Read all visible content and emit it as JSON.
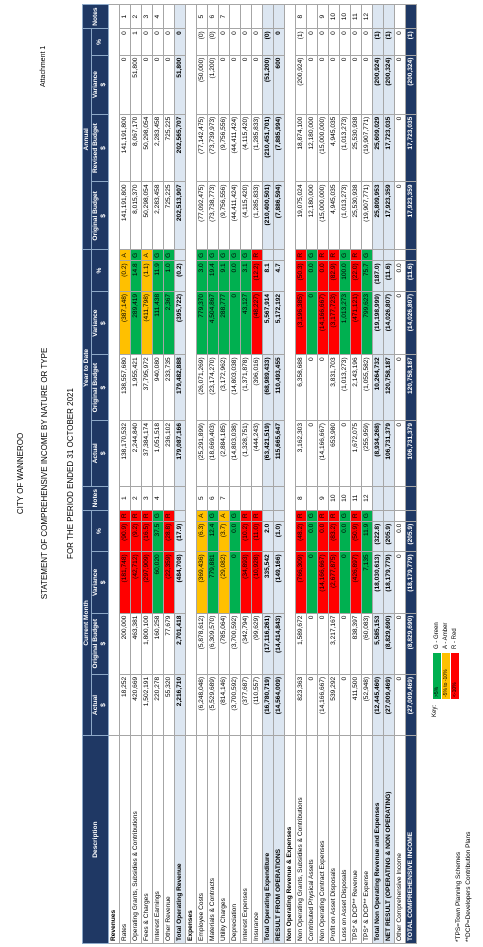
{
  "header": {
    "city": "CITY OF WANNEROO",
    "title": "STATEMENT OF COMPREHENSIVE INCOME BY NATURE OR TYPE",
    "period": "FOR THE PERIOD ENDED 31 OCTOBER 2021",
    "attachment": "Attachment 1"
  },
  "table": {
    "description": "Description",
    "notes": "Notes",
    "unit": "$",
    "groups": [
      {
        "title": "Current Month",
        "columns": [
          "Actual",
          "Original Budget",
          "Variance",
          "%"
        ]
      },
      {
        "title": "Year to Date",
        "columns": [
          "Actual",
          "Original Budget",
          "Variance",
          "%"
        ]
      },
      {
        "title": "Annual",
        "columns": [
          "Original Budget",
          "Revised Budget",
          "Variance",
          "%"
        ]
      }
    ],
    "rows": [
      [
        "Revenues"
      ],
      [
        "Rates",
        "18,252",
        "200,000",
        "(181,748)",
        "(90.9)",
        "R",
        "1",
        "138,170,532",
        "138,557,680",
        "(387,148)",
        "(0.2)",
        "A",
        "141,191,800",
        "141,191,800",
        "0",
        "0",
        "1"
      ],
      [
        "Operating Grants, Subsidies & Contributions",
        "420,669",
        "463,381",
        "(42,712)",
        "(9.2)",
        "R",
        "2",
        "2,244,840",
        "1,955,421",
        "289,419",
        "14.8",
        "G",
        "8,015,370",
        "8,067,170",
        "51,800",
        "1",
        "2"
      ],
      [
        "Fees & Charges",
        "1,502,191",
        "1,800,100",
        "(297,909)",
        "(16.5)",
        "R",
        "3",
        "37,384,174",
        "37,795,972",
        "(411,798)",
        "(1.1)",
        "A",
        "50,298,054",
        "50,298,054",
        "0",
        "0",
        "3"
      ],
      [
        "Interest Earnings",
        "220,278",
        "160,258",
        "60,020",
        "37.5",
        "G",
        "4",
        "1,051,518",
        "940,080",
        "111,438",
        "11.9",
        "G",
        "2,283,458",
        "2,283,458",
        "0",
        "0",
        "4"
      ],
      [
        "Other Revenue",
        "55,320",
        "77,679",
        "(22,359)",
        "(28.8)",
        "R",
        null,
        "236,102",
        "233,735",
        "2,367",
        "1.0",
        "G",
        "725,225",
        "725,225",
        "0",
        "0",
        null
      ],
      [
        "Total Operating Revenue",
        "2,216,710",
        "2,701,418",
        "(484,708)",
        "(17.9)",
        null,
        null,
        "179,087,166",
        "179,482,888",
        "(395,722)",
        "(0.2)",
        null,
        "202,513,907",
        "202,565,707",
        "51,800",
        "0",
        null
      ],
      [
        "Expenses"
      ],
      [
        "Employee Costs",
        "(6,248,048)",
        "(5,878,612)",
        "(369,436)",
        "(6.3)",
        "A",
        "5",
        "(25,291,899)",
        "(26,071,269)",
        "779,370",
        "3.0",
        "G",
        "(77,092,475)",
        "(77,142,475)",
        "(50,000)",
        "(0)",
        "5"
      ],
      [
        "Materials & Contracts",
        "(5,529,689)",
        "(6,309,570)",
        "779,881",
        "12.4",
        "G",
        "6",
        "(18,669,403)",
        "(23,174,270)",
        "4,504,867",
        "19.4",
        "G",
        "(73,738,773)",
        "(73,739,973)",
        "(1,200)",
        "(0)",
        "6"
      ],
      [
        "Utility Charges",
        "(814,146)",
        "(785,064)",
        "(29,082)",
        "(3.7)",
        "A",
        "7",
        "(2,884,185)",
        "(3,172,962)",
        "288,777",
        "9.1",
        "G",
        "(9,756,556)",
        "(9,756,556)",
        "0",
        "0",
        "7"
      ],
      [
        "Depreciation",
        "(3,700,592)",
        "(3,700,592)",
        "0",
        "0.0",
        "G",
        null,
        "(14,803,038)",
        "(14,803,038)",
        "0",
        "0.0",
        "G",
        "(44,411,424)",
        "(44,411,424)",
        "0",
        "0",
        null
      ],
      [
        "Interest Expenses",
        "(377,687)",
        "(342,794)",
        "(34,893)",
        "(10.2)",
        "R",
        null,
        "(1,328,751)",
        "(1,371,878)",
        "43,127",
        "3.1",
        "G",
        "(4,115,420)",
        "(4,115,420)",
        "0",
        "0",
        null
      ],
      [
        "Insurance",
        "(110,557)",
        "(99,629)",
        "(10,928)",
        "(11.0)",
        "R",
        null,
        "(444,243)",
        "(396,016)",
        "(48,227)",
        "(12.2)",
        "R",
        "(1,285,833)",
        "(1,285,833)",
        "0",
        "0",
        null
      ],
      [
        "Total Operating Expenditure",
        "(16,780,719)",
        "(17,116,261)",
        "335,542",
        "2.0",
        null,
        null,
        "(63,421,519)",
        "(68,989,433)",
        "5,567,914",
        "8.1",
        null,
        "(210,400,501)",
        "(210,451,701)",
        "(51,200)",
        "(0)",
        null
      ],
      [
        "RESULT FROM OPERATIONS",
        "(14,564,009)",
        "(14,414,843)",
        "(149,166)",
        "(1.0)",
        null,
        null,
        "115,665,647",
        "110,493,455",
        "5,172,192",
        "4.7",
        null,
        "(7,886,594)",
        "(7,885,994)",
        "600",
        "0",
        null
      ],
      [
        "Non Operating Revenue & Expenses"
      ],
      [
        "Non Operating Grants, Subsidies & Contributions",
        "823,363",
        "1,589,672",
        "(766,309)",
        "(48.2)",
        "R",
        "8",
        "3,162,303",
        "6,358,688",
        "(3,196,385)",
        "(50.3)",
        "R",
        "19,075,024",
        "18,874,100",
        "(200,924)",
        "(1)",
        "8"
      ],
      [
        "Contributed Physical Assets",
        "0",
        "0",
        "0",
        "0.0",
        "G",
        null,
        "0",
        "0",
        "0",
        "0.0",
        "G",
        "12,180,000",
        "12,180,000",
        "0",
        "0",
        null
      ],
      [
        "Non Operating Contract Expenses",
        "(14,166,667)",
        "0",
        "(14,166,667)",
        "0.0",
        "R",
        "9",
        "(14,166,667)",
        "0",
        "(14,166,667)",
        "0.0",
        "R",
        "(15,000,000)",
        "(15,000,000)",
        "0",
        "0",
        "9"
      ],
      [
        "Profit on Asset Disposals",
        "539,292",
        "3,217,167",
        "(2,677,875)",
        "(83.2)",
        "R",
        "10",
        "653,980",
        "3,831,703",
        "(3,177,723)",
        "(82.9)",
        "R",
        "4,945,035",
        "4,945,035",
        "0",
        "0",
        "10"
      ],
      [
        "Loss on Asset Disposals",
        "0",
        "0",
        "0",
        "0.0",
        "G",
        "10",
        "0",
        "(1,013,273)",
        "1,013,273",
        "100.0",
        "G",
        "(1,013,273)",
        "(1,013,273)",
        "0",
        "0",
        "10"
      ],
      [
        "TPS* & DCP** Revenue",
        "411,500",
        "838,397",
        "(426,897)",
        "(50.9)",
        "R",
        "11",
        "1,672,075",
        "2,143,196",
        "(471,121)",
        "(22.0)",
        "R",
        "25,530,938",
        "25,530,938",
        "0",
        "0",
        "11"
      ],
      [
        "TPS* & DCP** Expense",
        "(52,948)",
        "(60,083)",
        "7,135",
        "11.9",
        "G",
        "12",
        "(255,959)",
        "(1,055,582)",
        "799,623",
        "75.7",
        "G",
        "(19,907,771)",
        "(19,907,771)",
        "0",
        "0",
        "12"
      ],
      [
        "Total Non Operating Revenue and Expenses",
        "(12,445,460)",
        "5,585,153",
        "(18,030,613)",
        "(322.8)",
        null,
        null,
        "(8,934,268)",
        "10,264,732",
        "(19,198,999)",
        "(187.0)",
        null,
        "25,809,953",
        "25,609,029",
        "(200,924)",
        "(1)",
        null
      ],
      [
        "NET RESULT (OPERATING & NON OPERATING)",
        "(27,009,469)",
        "(8,829,690)",
        "(18,179,779)",
        "(205.9)",
        null,
        null,
        "106,731,379",
        "120,758,187",
        "(14,026,807)",
        "(11.6)",
        null,
        "17,923,359",
        "17,723,035",
        "(200,324)",
        "(1)",
        null
      ],
      [
        "Other Comprehensive Income",
        "0",
        "0",
        "0",
        "0.0",
        null,
        null,
        "0",
        "0",
        "0",
        "0.0",
        null,
        "0",
        "0",
        "0",
        "0",
        null
      ],
      [
        "TOTAL COMPREHENSIVE INCOME",
        "(27,009,469)",
        "(8,829,690)",
        "(18,179,779)",
        "(205.9)",
        null,
        null,
        "106,731,379",
        "120,758,187",
        "(14,026,807)",
        "(11.6)",
        null,
        "17,923,359",
        "17,723,035",
        "(200,324)",
        "(1)",
        null
      ]
    ]
  },
  "key": {
    "title": "Key:",
    "items": [
      {
        "range": ">5%",
        "label": "G - Green"
      },
      {
        "range": "-5% to -10%",
        "label": "A - Amber"
      },
      {
        "range": "<-10%",
        "label": "R - Red"
      }
    ]
  },
  "footnotes": [
    "*TPS=Town Planning Schemes",
    "**DCP=Developers Contribution Plans"
  ]
}
